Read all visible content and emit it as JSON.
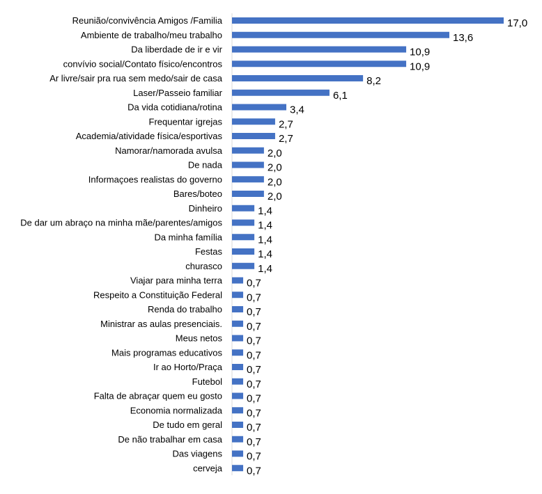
{
  "chart_data": {
    "type": "bar",
    "orientation": "horizontal",
    "categories": [
      "Reunião/convivência Amigos /Familia",
      "Ambiente de trabalho/meu trabalho",
      "Da liberdade de ir e vir",
      "convívio social/Contato físico/encontros",
      "Ar livre/sair pra rua sem medo/sair de casa",
      "Laser/Passeio familiar",
      "Da vida cotidiana/rotina",
      "Frequentar igrejas",
      "Academia/atividade física/esportivas",
      "Namorar/namorada avulsa",
      "De nada",
      "Informaçoes realistas do governo",
      "Bares/boteo",
      "Dinheiro",
      "De dar um abraço na minha mãe/parentes/amigos",
      "Da minha família",
      "Festas",
      "churasco",
      "Viajar para minha terra",
      "Respeito a Constituição Federal",
      "Renda do trabalho",
      "Ministrar as aulas presenciais.",
      "Meus netos",
      "Mais programas educativos",
      "Ir ao Horto/Praça",
      "Futebol",
      "Falta de abraçar  quem eu gosto",
      "Economia normalizada",
      "De tudo em geral",
      "De não trabalhar em casa",
      "Das viagens",
      "cerveja"
    ],
    "values": [
      17.0,
      13.6,
      10.9,
      10.9,
      8.2,
      6.1,
      3.4,
      2.7,
      2.7,
      2.0,
      2.0,
      2.0,
      2.0,
      1.4,
      1.4,
      1.4,
      1.4,
      1.4,
      0.7,
      0.7,
      0.7,
      0.7,
      0.7,
      0.7,
      0.7,
      0.7,
      0.7,
      0.7,
      0.7,
      0.7,
      0.7,
      0.7
    ],
    "value_labels": [
      "17,0",
      "13,6",
      "10,9",
      "10,9",
      "8,2",
      "6,1",
      "3,4",
      "2,7",
      "2,7",
      "2,0",
      "2,0",
      "2,0",
      "2,0",
      "1,4",
      "1,4",
      "1,4",
      "1,4",
      "1,4",
      "0,7",
      "0,7",
      "0,7",
      "0,7",
      "0,7",
      "0,7",
      "0,7",
      "0,7",
      "0,7",
      "0,7",
      "0,7",
      "0,7",
      "0,7",
      "0,7"
    ],
    "bar_color": "#4472C4",
    "xlim": [
      0,
      17.0
    ],
    "title": "",
    "xlabel": "",
    "ylabel": "",
    "grid": false,
    "legend": "none"
  }
}
